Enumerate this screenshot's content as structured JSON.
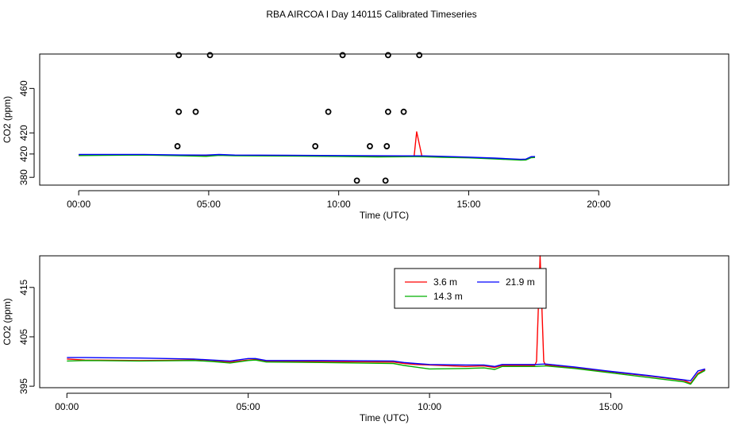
{
  "title": "RBA AIRCOA I  Day 140115  Calibrated Timeseries",
  "chart_data": [
    {
      "type": "line",
      "xlabel": "Time (UTC)",
      "ylabel": "CO2 (ppm)",
      "xlim": [
        -1.5,
        25
      ],
      "ylim": [
        373,
        491
      ],
      "x_ticks": [
        {
          "value": 0,
          "label": "00:00"
        },
        {
          "value": 5,
          "label": "05:00"
        },
        {
          "value": 10,
          "label": "10:00"
        },
        {
          "value": 15,
          "label": "15:00"
        },
        {
          "value": 20,
          "label": "20:00"
        }
      ],
      "y_ticks": [
        {
          "value": 380,
          "label": "380"
        },
        {
          "value": 420,
          "label": "420"
        },
        {
          "value": 460,
          "label": "460"
        }
      ],
      "y_label_overrides": [
        {
          "value": 401,
          "label": "420"
        }
      ],
      "series": [
        {
          "name": "3.6 m",
          "color": "#ff0000",
          "points": [
            [
              0,
              400.2
            ],
            [
              2.5,
              400.2
            ],
            [
              3.9,
              399.8
            ],
            [
              4.9,
              399.6
            ],
            [
              5.4,
              400.3
            ],
            [
              6,
              399.8
            ],
            [
              8,
              399.6
            ],
            [
              10,
              399.3
            ],
            [
              11.5,
              399.0
            ],
            [
              12.9,
              399.0
            ],
            [
              13.0,
              421.0
            ],
            [
              13.2,
              399.0
            ],
            [
              14,
              398.6
            ],
            [
              15,
              397.9
            ],
            [
              16,
              397.0
            ],
            [
              17.0,
              395.9
            ],
            [
              17.2,
              396.0
            ],
            [
              17.4,
              398.2
            ],
            [
              17.55,
              398.3
            ]
          ]
        },
        {
          "name": "14.3 m",
          "color": "#00b000",
          "points": [
            [
              0,
              399.6
            ],
            [
              2.5,
              400.0
            ],
            [
              3.9,
              399.4
            ],
            [
              4.9,
              398.9
            ],
            [
              5.4,
              399.8
            ],
            [
              6,
              399.4
            ],
            [
              8,
              399.2
            ],
            [
              10,
              398.8
            ],
            [
              11.5,
              398.4
            ],
            [
              12.9,
              398.6
            ],
            [
              13.2,
              398.5
            ],
            [
              14,
              398.0
            ],
            [
              15,
              397.5
            ],
            [
              16,
              396.5
            ],
            [
              17.0,
              395.5
            ],
            [
              17.2,
              395.6
            ],
            [
              17.4,
              397.7
            ],
            [
              17.55,
              397.9
            ]
          ]
        },
        {
          "name": "21.9 m",
          "color": "#0000ff",
          "points": [
            [
              0,
              400.6
            ],
            [
              2.5,
              400.6
            ],
            [
              3.9,
              400.1
            ],
            [
              4.9,
              400.0
            ],
            [
              5.4,
              400.5
            ],
            [
              6,
              400.0
            ],
            [
              8,
              399.9
            ],
            [
              10,
              399.6
            ],
            [
              11.5,
              399.4
            ],
            [
              12.9,
              399.3
            ],
            [
              13.2,
              399.3
            ],
            [
              14,
              398.9
            ],
            [
              15,
              398.2
            ],
            [
              16,
              397.3
            ],
            [
              17.0,
              396.2
            ],
            [
              17.2,
              396.4
            ],
            [
              17.4,
              398.6
            ],
            [
              17.55,
              398.7
            ]
          ]
        }
      ],
      "outliers": [
        [
          3.85,
          490
        ],
        [
          5.05,
          490
        ],
        [
          10.15,
          490
        ],
        [
          11.9,
          490
        ],
        [
          13.1,
          490
        ],
        [
          3.85,
          439
        ],
        [
          4.5,
          439
        ],
        [
          9.6,
          439
        ],
        [
          11.9,
          439
        ],
        [
          12.5,
          439
        ],
        [
          3.8,
          408
        ],
        [
          9.1,
          408
        ],
        [
          11.2,
          408
        ],
        [
          11.85,
          408
        ],
        [
          10.7,
          377
        ],
        [
          11.8,
          377
        ]
      ]
    },
    {
      "type": "line",
      "xlabel": "Time (UTC)",
      "ylabel": "CO2 (ppm)",
      "xlim": [
        -0.75,
        18.25
      ],
      "ylim": [
        394.7,
        421.4
      ],
      "x_ticks": [
        {
          "value": 0,
          "label": "00:00"
        },
        {
          "value": 5,
          "label": "05:00"
        },
        {
          "value": 10,
          "label": "10:00"
        },
        {
          "value": 15,
          "label": "15:00"
        }
      ],
      "y_ticks": [
        {
          "value": 395,
          "label": "395"
        },
        {
          "value": 405,
          "label": "405"
        },
        {
          "value": 415,
          "label": "415"
        }
      ],
      "legend": {
        "position": "top-right",
        "columns": 2
      },
      "series": [
        {
          "name": "3.6 m",
          "color": "#ff0000",
          "points": [
            [
              0,
              400.5
            ],
            [
              0.5,
              400.3
            ],
            [
              2,
              400.2
            ],
            [
              3.5,
              400.3
            ],
            [
              4.0,
              400.1
            ],
            [
              4.5,
              399.9
            ],
            [
              5.0,
              400.3
            ],
            [
              5.2,
              400.4
            ],
            [
              5.5,
              400.0
            ],
            [
              7,
              400.0
            ],
            [
              9,
              399.9
            ],
            [
              9.3,
              399.6
            ],
            [
              9.6,
              399.4
            ],
            [
              10,
              399.3
            ],
            [
              11,
              399.0
            ],
            [
              11.5,
              399.1
            ],
            [
              11.8,
              398.8
            ],
            [
              12.0,
              399.2
            ],
            [
              12.9,
              399.2
            ],
            [
              12.95,
              400.0
            ],
            [
              13.05,
              421.4
            ],
            [
              13.15,
              400.0
            ],
            [
              13.2,
              399.3
            ],
            [
              14,
              398.7
            ],
            [
              15,
              397.9
            ],
            [
              16,
              397.1
            ],
            [
              17.0,
              396.2
            ],
            [
              17.2,
              395.6
            ],
            [
              17.4,
              397.6
            ],
            [
              17.6,
              398.4
            ]
          ]
        },
        {
          "name": "14.3 m",
          "color": "#00b000",
          "points": [
            [
              0,
              400.1
            ],
            [
              0.5,
              400.2
            ],
            [
              2,
              400.1
            ],
            [
              3.5,
              400.2
            ],
            [
              4.0,
              400.0
            ],
            [
              4.5,
              399.7
            ],
            [
              5.0,
              400.2
            ],
            [
              5.2,
              400.3
            ],
            [
              5.5,
              399.9
            ],
            [
              7,
              399.8
            ],
            [
              9,
              399.6
            ],
            [
              9.3,
              399.2
            ],
            [
              9.6,
              398.9
            ],
            [
              10,
              398.5
            ],
            [
              11,
              398.6
            ],
            [
              11.5,
              398.7
            ],
            [
              11.8,
              398.4
            ],
            [
              12.0,
              399.0
            ],
            [
              12.9,
              399.0
            ],
            [
              13.2,
              399.1
            ],
            [
              14,
              398.6
            ],
            [
              15,
              397.7
            ],
            [
              16,
              396.8
            ],
            [
              17.0,
              395.9
            ],
            [
              17.2,
              395.4
            ],
            [
              17.4,
              397.4
            ],
            [
              17.6,
              398.2
            ]
          ]
        },
        {
          "name": "21.9 m",
          "color": "#0000ff",
          "points": [
            [
              0,
              400.8
            ],
            [
              0.5,
              400.8
            ],
            [
              2,
              400.7
            ],
            [
              3.5,
              400.5
            ],
            [
              4.0,
              400.3
            ],
            [
              4.5,
              400.1
            ],
            [
              5.0,
              400.6
            ],
            [
              5.2,
              400.6
            ],
            [
              5.5,
              400.2
            ],
            [
              7,
              400.2
            ],
            [
              9,
              400.1
            ],
            [
              9.3,
              399.8
            ],
            [
              9.6,
              399.6
            ],
            [
              10,
              399.4
            ],
            [
              11,
              399.3
            ],
            [
              11.5,
              399.3
            ],
            [
              11.8,
              399.0
            ],
            [
              12.0,
              399.4
            ],
            [
              12.9,
              399.4
            ],
            [
              13.2,
              399.5
            ],
            [
              14,
              398.9
            ],
            [
              15,
              398.0
            ],
            [
              16,
              397.2
            ],
            [
              17.0,
              396.3
            ],
            [
              17.2,
              396.1
            ],
            [
              17.4,
              398.1
            ],
            [
              17.6,
              398.5
            ]
          ]
        }
      ]
    }
  ]
}
